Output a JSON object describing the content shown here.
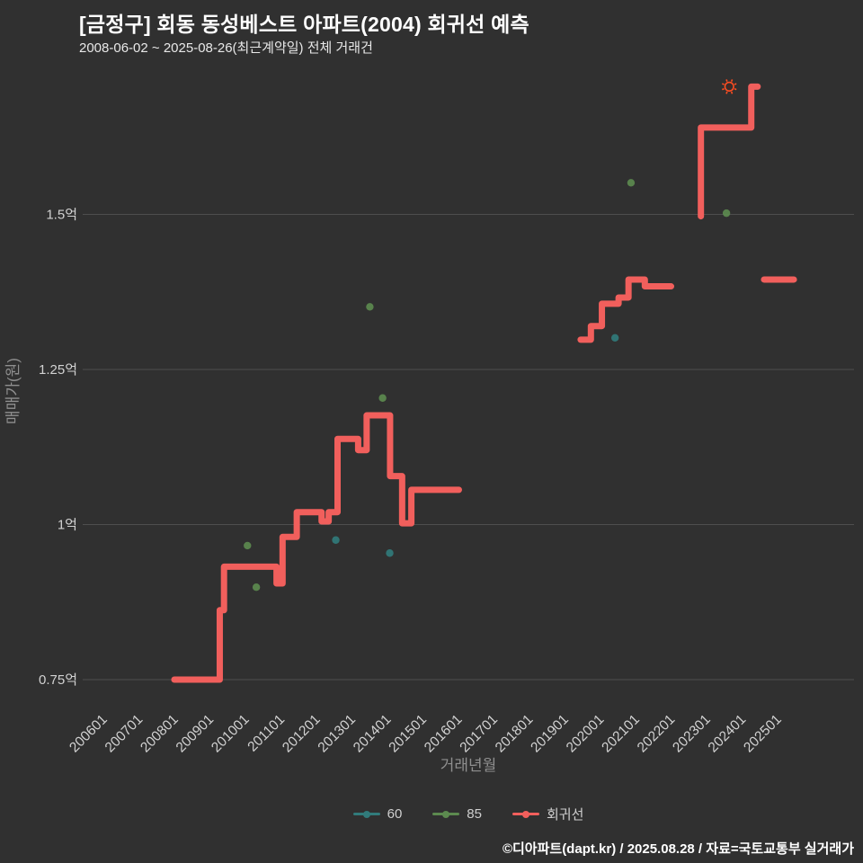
{
  "header": {
    "title": "[금정구] 회동 동성베스트 아파트(2004) 회귀선 예측",
    "subtitle": "2008-06-02 ~ 2025-08-26(최근계약일) 전체 거래건"
  },
  "footer": {
    "credit": "©디아파트(dapt.kr) / 2025.08.28 / 자료=국토교통부 실거래가"
  },
  "chart_data": {
    "type": "line",
    "title": "[금정구] 회동 동성베스트 아파트(2004) 회귀선 예측",
    "subtitle": "2008-06-02 ~ 2025-08-26(최근계약일) 전체 거래건",
    "xlabel": "거래년월",
    "ylabel": "매매가(원)",
    "grid": true,
    "legend_position": "bottom",
    "background": "#303030",
    "grid_color": "#4e4e4e",
    "tick_color": "#d2d2d2",
    "axis_label_color": "#8f8f8f",
    "x_ticks": [
      "200601",
      "200701",
      "200801",
      "200901",
      "201001",
      "201101",
      "201201",
      "201301",
      "201401",
      "201501",
      "201601",
      "201701",
      "201801",
      "201901",
      "202001",
      "202101",
      "202201",
      "202301",
      "202401",
      "202501"
    ],
    "y_ticks": [
      {
        "label": "0.75억",
        "value": 0.75
      },
      {
        "label": "1억",
        "value": 1.0
      },
      {
        "label": "1.25억",
        "value": 1.25
      },
      {
        "label": "1.5억",
        "value": 1.5
      }
    ],
    "ylim": [
      0.7,
      1.72
    ],
    "xlim_years": [
      2005.4,
      2025.9
    ],
    "series": [
      {
        "name": "60",
        "type": "scatter",
        "color": "#317b7b",
        "points": [
          [
            2012.55,
            0.975
          ],
          [
            2014.07,
            0.954
          ],
          [
            2020.42,
            1.301
          ]
        ]
      },
      {
        "name": "85",
        "type": "scatter",
        "color": "#5c8a4f",
        "points": [
          [
            2010.06,
            0.966
          ],
          [
            2010.31,
            0.899
          ],
          [
            2013.51,
            1.351
          ],
          [
            2013.87,
            1.204
          ],
          [
            2020.87,
            1.551
          ],
          [
            2023.56,
            1.502
          ]
        ]
      },
      {
        "name": "회귀선",
        "type": "step_line",
        "color": "#f15f5c",
        "line_width": 7,
        "segments": [
          [
            [
              2008.0,
              0.75
            ],
            [
              2009.28,
              0.75
            ],
            [
              2009.28,
              0.862
            ],
            [
              2009.4,
              0.862
            ],
            [
              2009.4,
              0.932
            ],
            [
              2010.88,
              0.932
            ],
            [
              2010.88,
              0.905
            ],
            [
              2011.05,
              0.905
            ],
            [
              2011.05,
              0.98
            ],
            [
              2011.45,
              0.98
            ],
            [
              2011.45,
              1.02
            ],
            [
              2012.15,
              1.02
            ],
            [
              2012.15,
              1.005
            ],
            [
              2012.35,
              1.005
            ],
            [
              2012.35,
              1.02
            ],
            [
              2012.6,
              1.02
            ],
            [
              2012.6,
              1.138
            ],
            [
              2013.18,
              1.138
            ],
            [
              2013.18,
              1.12
            ],
            [
              2013.42,
              1.12
            ],
            [
              2013.42,
              1.176
            ],
            [
              2014.08,
              1.176
            ],
            [
              2014.08,
              1.078
            ],
            [
              2014.42,
              1.078
            ],
            [
              2014.42,
              1.002
            ],
            [
              2014.68,
              1.002
            ],
            [
              2014.68,
              1.056
            ],
            [
              2016.02,
              1.056
            ]
          ],
          [
            [
              2019.45,
              1.298
            ],
            [
              2019.74,
              1.298
            ],
            [
              2019.74,
              1.32
            ],
            [
              2020.05,
              1.32
            ],
            [
              2020.05,
              1.356
            ],
            [
              2020.52,
              1.356
            ],
            [
              2020.52,
              1.366
            ],
            [
              2020.8,
              1.366
            ],
            [
              2020.8,
              1.395
            ],
            [
              2021.26,
              1.395
            ],
            [
              2021.26,
              1.384
            ],
            [
              2022.0,
              1.384
            ]
          ],
          [
            [
              2022.84,
              1.497
            ],
            [
              2022.84,
              1.64
            ],
            [
              2024.26,
              1.64
            ],
            [
              2024.26,
              1.706
            ],
            [
              2024.44,
              1.706
            ]
          ],
          [
            [
              2024.62,
              1.395
            ],
            [
              2025.46,
              1.395
            ]
          ]
        ]
      }
    ],
    "highlight_marker": {
      "x": 2023.64,
      "y": 1.706,
      "color": "#ff4d21",
      "center_color": "#50231b"
    }
  }
}
